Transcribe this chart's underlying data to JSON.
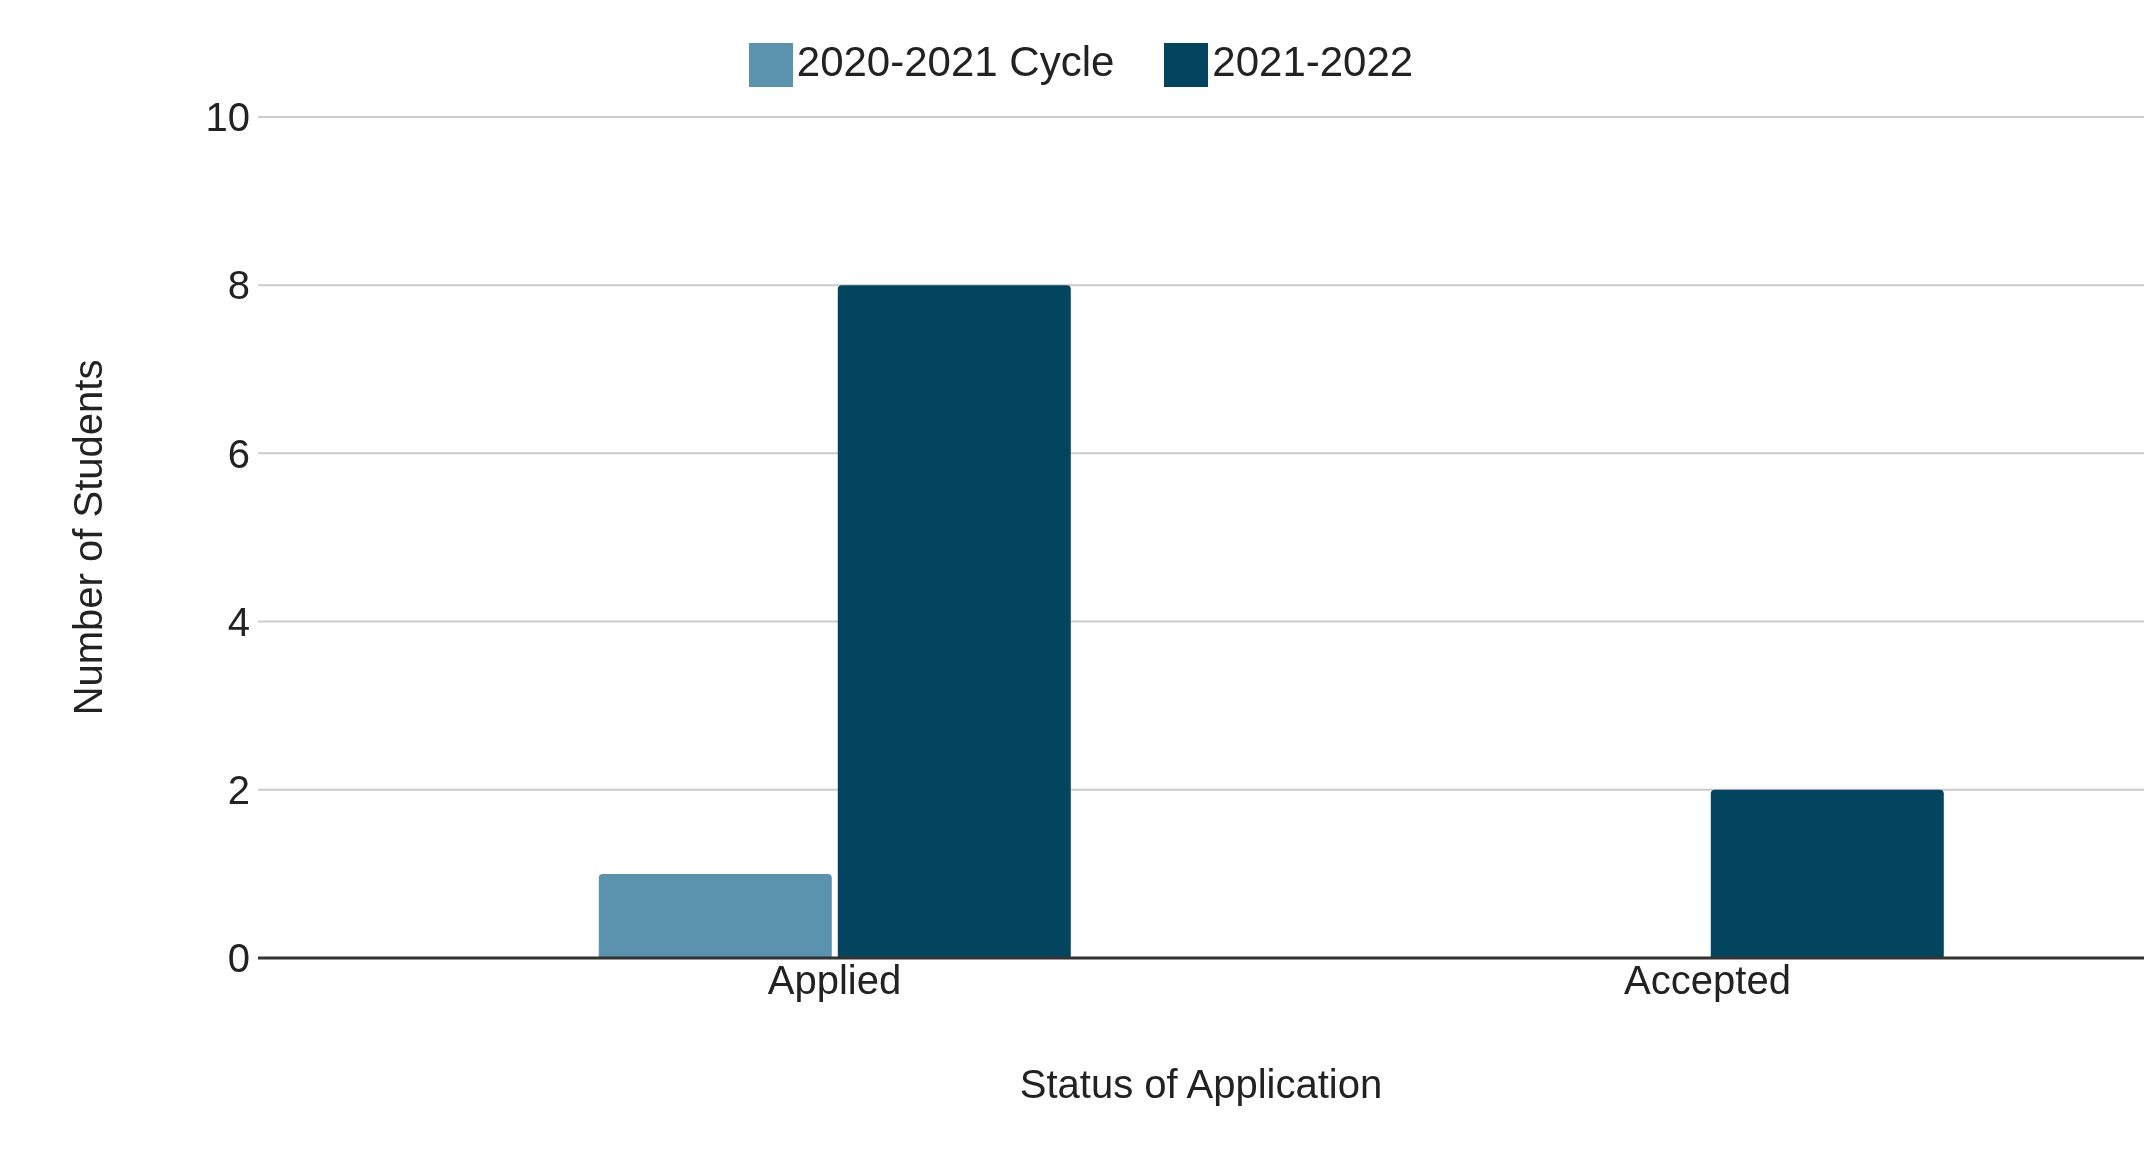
{
  "chart_data": {
    "type": "bar",
    "xlabel": "Status of Application",
    "ylabel": "Number of Students",
    "categories": [
      "Applied",
      "Accepted"
    ],
    "series": [
      {
        "name": "2020-2021 Cycle",
        "color": "#5b92ad",
        "values": [
          1,
          0
        ]
      },
      {
        "name": "2021-2022",
        "color": "#03455f",
        "values": [
          8,
          2
        ]
      }
    ],
    "ylim": [
      0,
      10
    ],
    "yticks": [
      0,
      2,
      4,
      6,
      8,
      10
    ],
    "grid": "y",
    "legend": "top"
  }
}
